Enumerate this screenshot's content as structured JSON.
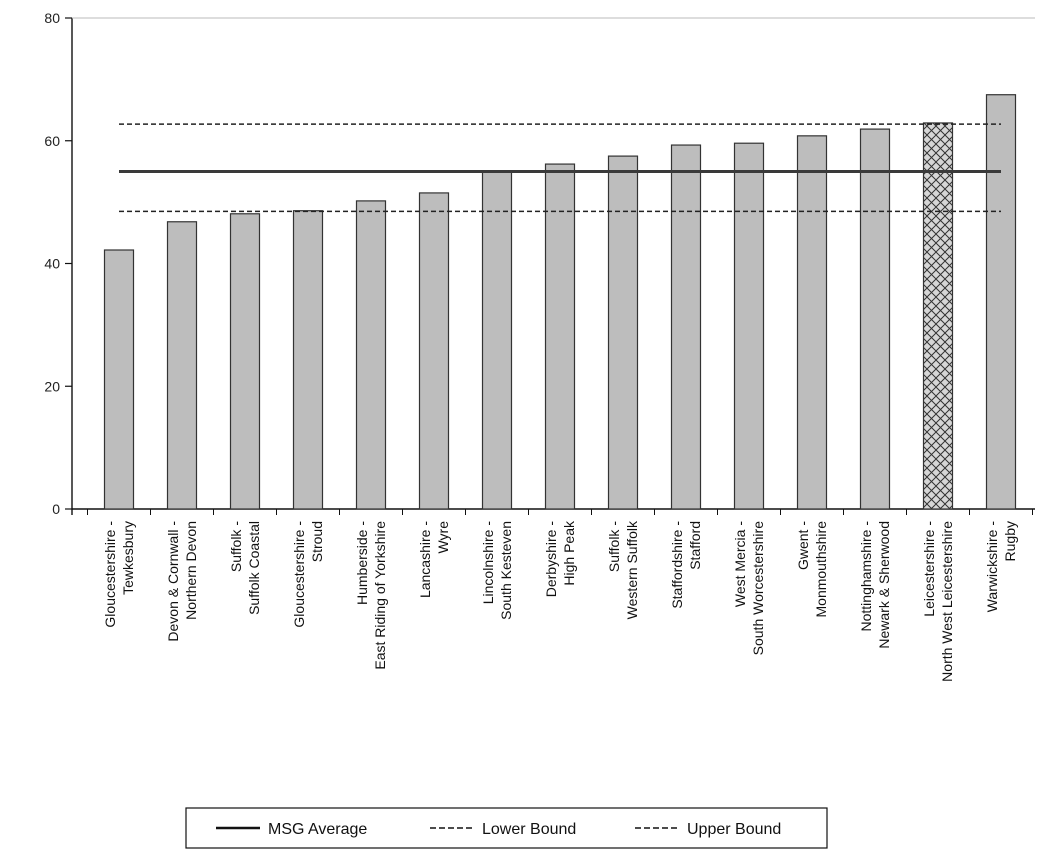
{
  "chart_data": {
    "type": "bar",
    "categories": [
      [
        "Gloucestershire -",
        "Tewkesbury"
      ],
      [
        "Devon & Cornwall -",
        "Northern Devon"
      ],
      [
        "Suffolk -",
        "Suffolk Coastal"
      ],
      [
        "Gloucestershire -",
        "Stroud"
      ],
      [
        "Humberside -",
        "East Riding of Yorkshire"
      ],
      [
        "Lancashire -",
        "Wyre"
      ],
      [
        "Lincolnshire -",
        "South Kesteven"
      ],
      [
        "Derbyshire -",
        "High Peak"
      ],
      [
        "Suffolk -",
        "Western Suffolk"
      ],
      [
        "Staffordshire -",
        "Stafford"
      ],
      [
        "West Mercia -",
        "South Worcestershire"
      ],
      [
        "Gwent -",
        "Monmouthshire"
      ],
      [
        "Nottinghamshire -",
        "Newark & Sherwood"
      ],
      [
        "Leicestershire -",
        "North West Leicestershire"
      ],
      [
        "Warwickshire -",
        "Rugby"
      ]
    ],
    "values": [
      42.2,
      46.8,
      48.1,
      48.6,
      50.2,
      51.5,
      55.0,
      56.2,
      57.5,
      59.3,
      59.6,
      60.8,
      61.9,
      62.9,
      67.5
    ],
    "highlight_index": 13,
    "reference_lines": [
      {
        "name": "MSG Average",
        "value": 55.0,
        "style": "solid"
      },
      {
        "name": "Lower Bound",
        "value": 48.5,
        "style": "dashed"
      },
      {
        "name": "Upper Bound",
        "value": 62.7,
        "style": "dashed"
      }
    ],
    "ylim": [
      0,
      80
    ],
    "yticks": [
      0,
      20,
      40,
      60,
      80
    ],
    "xlabel": "",
    "ylabel": "",
    "legend_position": "bottom",
    "colors": {
      "bar_fill": "#bdbdbd",
      "bar_stroke": "#333333",
      "average_line": "#3a3a3a",
      "bound_line": "#222222"
    }
  }
}
